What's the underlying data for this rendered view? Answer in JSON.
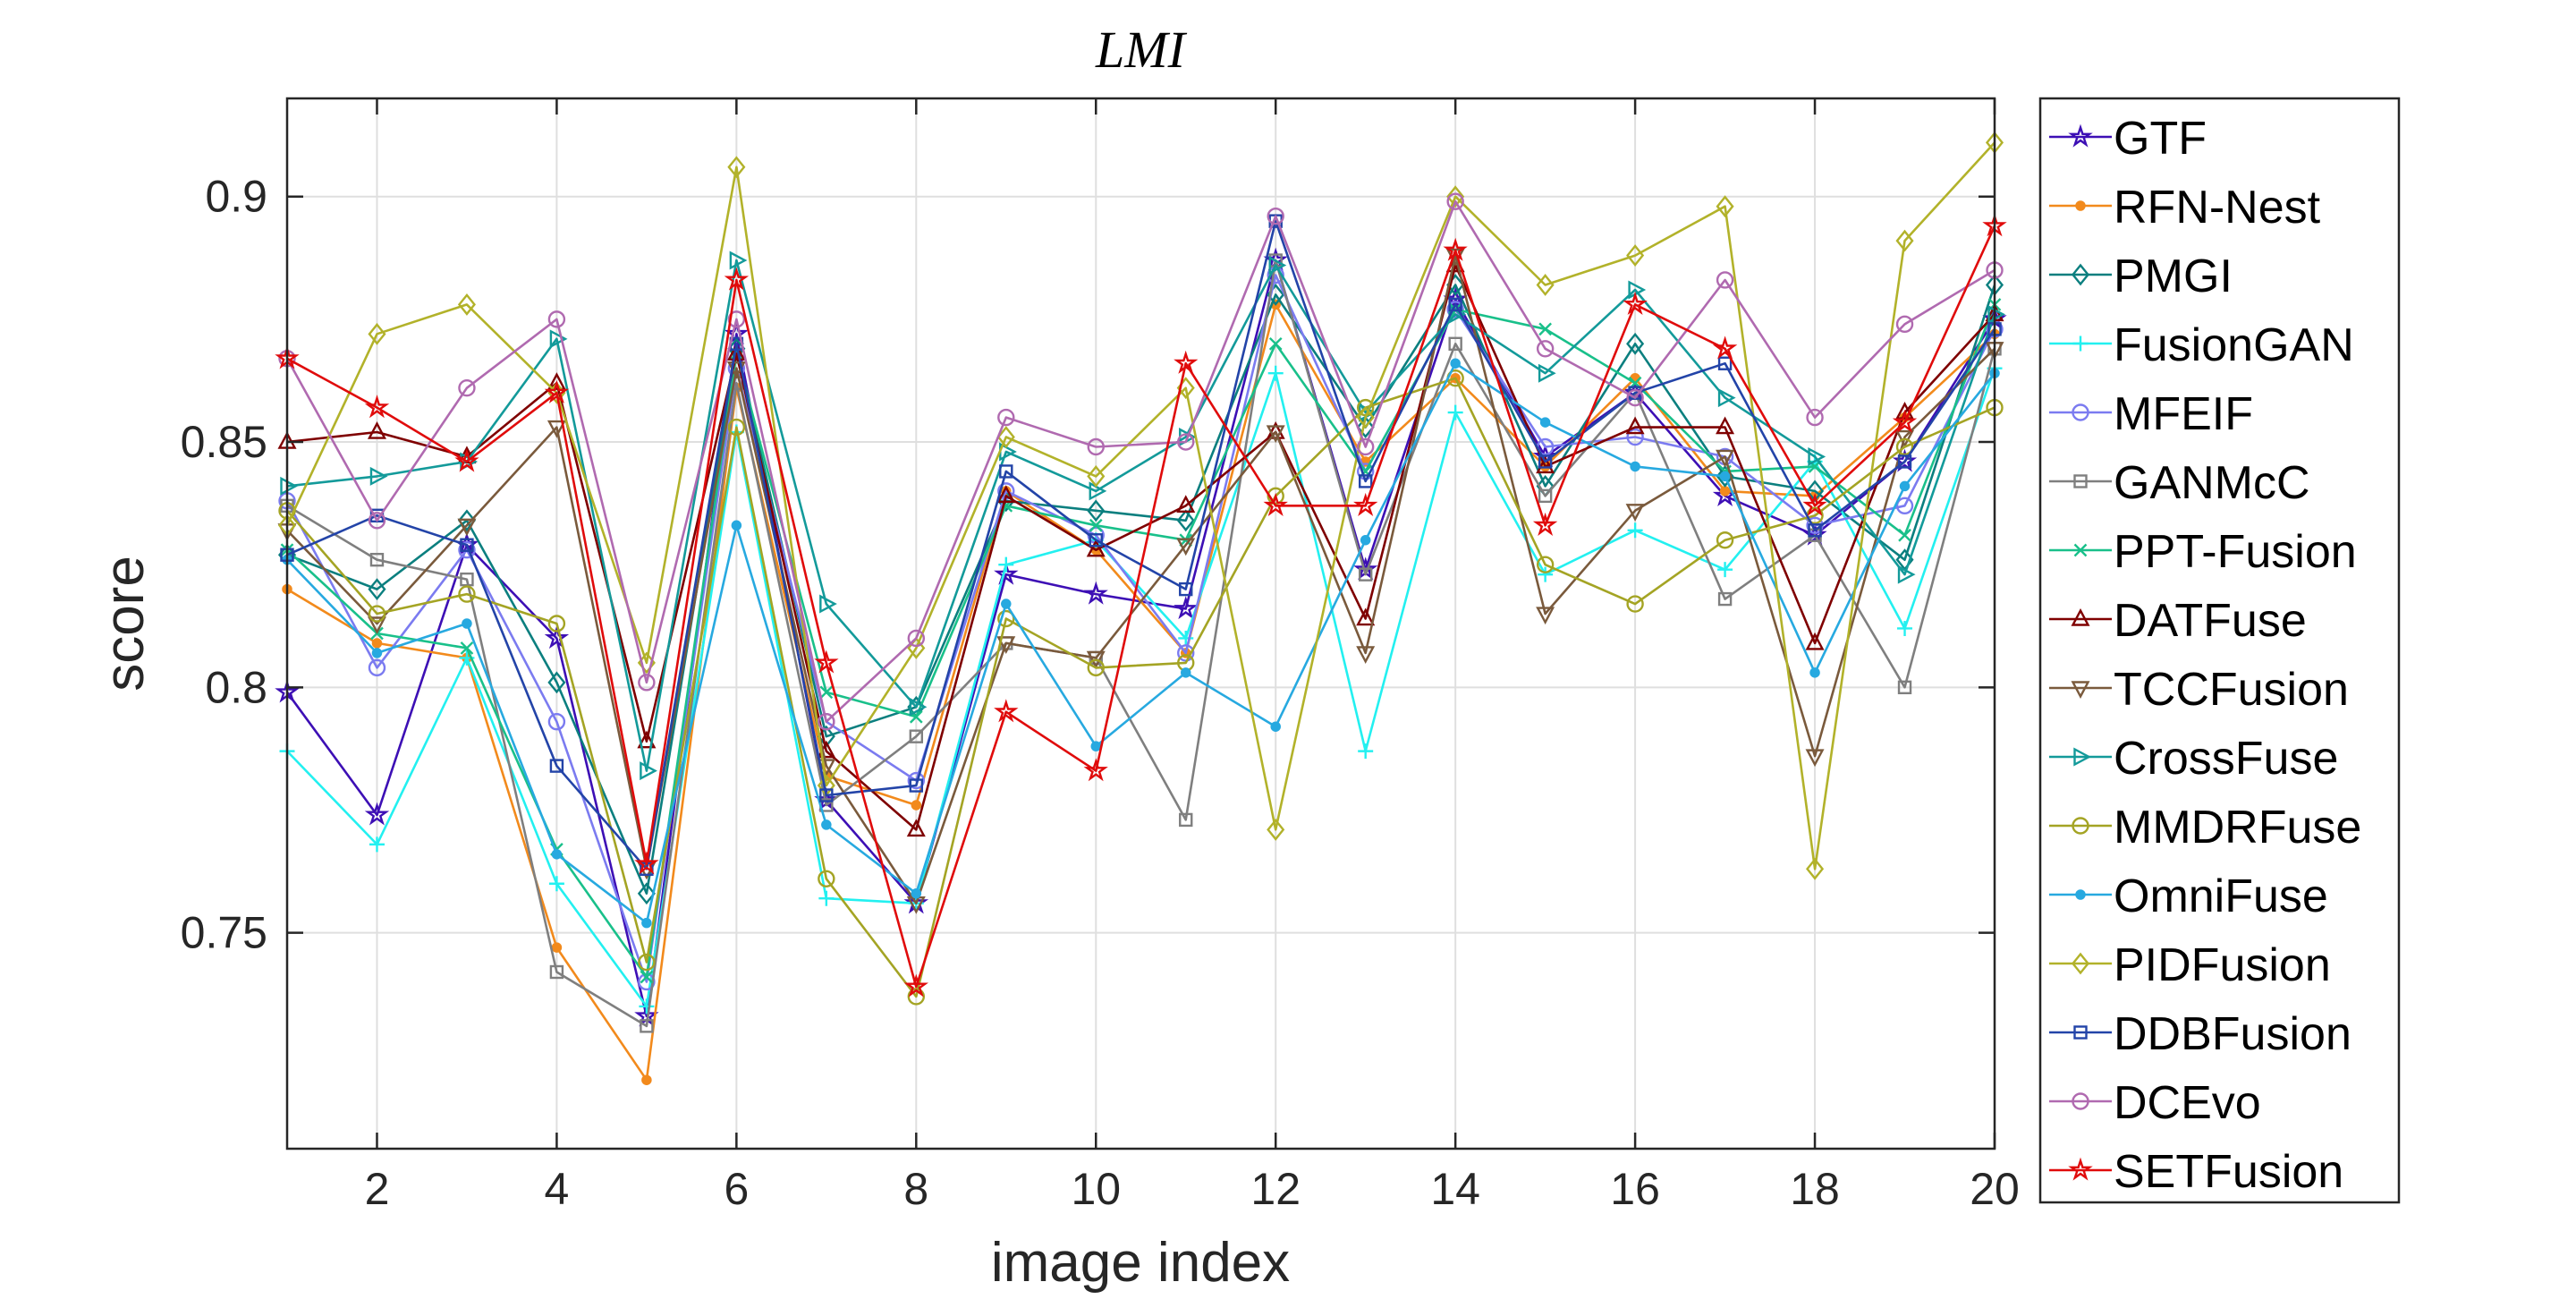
{
  "chart_data": {
    "type": "line",
    "title": "LMI",
    "xlabel": "image index",
    "ylabel": "score",
    "xlim": [
      1,
      20
    ],
    "ylim": [
      0.706,
      0.92
    ],
    "xticks": [
      2,
      4,
      6,
      8,
      10,
      12,
      14,
      16,
      18,
      20
    ],
    "yticks": [
      0.75,
      0.8,
      0.85,
      0.9
    ],
    "ytick_labels": [
      "0.75",
      "0.8",
      "0.85",
      "0.9"
    ],
    "grid": true,
    "legend": "outside-right",
    "x": [
      1,
      2,
      3,
      4,
      5,
      6,
      7,
      8,
      9,
      10,
      11,
      12,
      13,
      14,
      15,
      16,
      17,
      18,
      19,
      20
    ],
    "series": [
      {
        "name": "GTF",
        "color": "#3d0fb5",
        "marker": "star",
        "values": [
          0.799,
          0.774,
          0.829,
          0.81,
          0.733,
          0.872,
          0.777,
          0.756,
          0.823,
          0.819,
          0.816,
          0.887,
          0.824,
          0.879,
          0.847,
          0.86,
          0.839,
          0.831,
          0.846,
          0.875
        ]
      },
      {
        "name": "RFN-Nest",
        "color": "#f28a1c",
        "marker": "dot",
        "values": [
          0.82,
          0.809,
          0.806,
          0.747,
          0.72,
          0.861,
          0.782,
          0.776,
          0.84,
          0.828,
          0.807,
          0.878,
          0.846,
          0.863,
          0.845,
          0.863,
          0.84,
          0.839,
          0.855,
          0.872
        ]
      },
      {
        "name": "PMGI",
        "color": "#0b7f7f",
        "marker": "diamond",
        "values": [
          0.827,
          0.82,
          0.834,
          0.801,
          0.758,
          0.869,
          0.79,
          0.796,
          0.838,
          0.836,
          0.834,
          0.88,
          0.853,
          0.882,
          0.841,
          0.87,
          0.843,
          0.84,
          0.826,
          0.882
        ]
      },
      {
        "name": "FusionGAN",
        "color": "#23f0f0",
        "marker": "plus",
        "values": [
          0.787,
          0.768,
          0.806,
          0.76,
          0.735,
          0.852,
          0.757,
          0.756,
          0.825,
          0.83,
          0.81,
          0.864,
          0.787,
          0.856,
          0.823,
          0.832,
          0.824,
          0.846,
          0.812,
          0.865
        ]
      },
      {
        "name": "MFEIF",
        "color": "#7b7bf0",
        "marker": "circle",
        "values": [
          0.838,
          0.804,
          0.828,
          0.793,
          0.74,
          0.865,
          0.793,
          0.781,
          0.84,
          0.831,
          0.807,
          0.884,
          0.844,
          0.877,
          0.849,
          0.851,
          0.847,
          0.833,
          0.837,
          0.873
        ]
      },
      {
        "name": "GANMcC",
        "color": "#7f7f7f",
        "marker": "square",
        "values": [
          0.837,
          0.826,
          0.822,
          0.742,
          0.731,
          0.862,
          0.776,
          0.79,
          0.809,
          0.806,
          0.773,
          0.887,
          0.823,
          0.87,
          0.839,
          0.86,
          0.818,
          0.831,
          0.8,
          0.869
        ]
      },
      {
        "name": "PPT-Fusion",
        "color": "#19c08a",
        "marker": "x",
        "values": [
          0.828,
          0.811,
          0.808,
          0.767,
          0.741,
          0.868,
          0.799,
          0.794,
          0.837,
          0.833,
          0.83,
          0.87,
          0.844,
          0.877,
          0.873,
          0.862,
          0.844,
          0.845,
          0.831,
          0.878
        ]
      },
      {
        "name": "DATFuse",
        "color": "#7f0000",
        "marker": "triangle-up",
        "values": [
          0.85,
          0.852,
          0.847,
          0.862,
          0.789,
          0.868,
          0.787,
          0.771,
          0.839,
          0.828,
          0.837,
          0.852,
          0.814,
          0.886,
          0.845,
          0.853,
          0.853,
          0.809,
          0.856,
          0.876
        ]
      },
      {
        "name": "TCCFusion",
        "color": "#7a5a3c",
        "marker": "triangle-down",
        "values": [
          0.832,
          0.813,
          0.833,
          0.853,
          0.763,
          0.865,
          0.784,
          0.756,
          0.809,
          0.806,
          0.829,
          0.852,
          0.807,
          0.888,
          0.815,
          0.836,
          0.847,
          0.786,
          0.851,
          0.869
        ]
      },
      {
        "name": "CrossFuse",
        "color": "#139a9a",
        "marker": "triangle-right",
        "values": [
          0.841,
          0.843,
          0.846,
          0.871,
          0.783,
          0.887,
          0.817,
          0.796,
          0.848,
          0.84,
          0.851,
          0.886,
          0.856,
          0.876,
          0.864,
          0.881,
          0.859,
          0.847,
          0.823,
          0.876
        ]
      },
      {
        "name": "MMDRFuse",
        "color": "#a4a424",
        "marker": "circle",
        "values": [
          0.836,
          0.815,
          0.819,
          0.813,
          0.744,
          0.853,
          0.761,
          0.737,
          0.814,
          0.804,
          0.805,
          0.839,
          0.857,
          0.863,
          0.825,
          0.817,
          0.83,
          0.835,
          0.849,
          0.857
        ]
      },
      {
        "name": "OmniFuse",
        "color": "#27a9e0",
        "marker": "dot",
        "values": [
          0.826,
          0.807,
          0.813,
          0.766,
          0.752,
          0.833,
          0.772,
          0.758,
          0.817,
          0.788,
          0.803,
          0.792,
          0.83,
          0.866,
          0.854,
          0.845,
          0.843,
          0.803,
          0.841,
          0.864
        ]
      },
      {
        "name": "PIDFusion",
        "color": "#b2b22a",
        "marker": "diamond",
        "values": [
          0.833,
          0.872,
          0.878,
          0.86,
          0.805,
          0.906,
          0.78,
          0.808,
          0.851,
          0.843,
          0.861,
          0.771,
          0.855,
          0.9,
          0.882,
          0.888,
          0.898,
          0.763,
          0.891,
          0.911
        ]
      },
      {
        "name": "DDBFusion",
        "color": "#2344a8",
        "marker": "square",
        "values": [
          0.827,
          0.835,
          0.829,
          0.784,
          0.763,
          0.87,
          0.778,
          0.78,
          0.844,
          0.83,
          0.82,
          0.895,
          0.842,
          0.878,
          0.846,
          0.86,
          0.866,
          0.832,
          0.846,
          0.873
        ]
      },
      {
        "name": "DCEvo",
        "color": "#b06ab0",
        "marker": "circle",
        "values": [
          0.867,
          0.834,
          0.861,
          0.875,
          0.801,
          0.875,
          0.793,
          0.81,
          0.855,
          0.849,
          0.85,
          0.896,
          0.849,
          0.899,
          0.869,
          0.859,
          0.883,
          0.855,
          0.874,
          0.885
        ]
      },
      {
        "name": "SETFusion",
        "color": "#e00b0b",
        "marker": "star",
        "values": [
          0.867,
          0.857,
          0.846,
          0.86,
          0.764,
          0.883,
          0.805,
          0.739,
          0.795,
          0.783,
          0.866,
          0.837,
          0.837,
          0.889,
          0.833,
          0.878,
          0.869,
          0.837,
          0.854,
          0.894
        ]
      }
    ]
  }
}
